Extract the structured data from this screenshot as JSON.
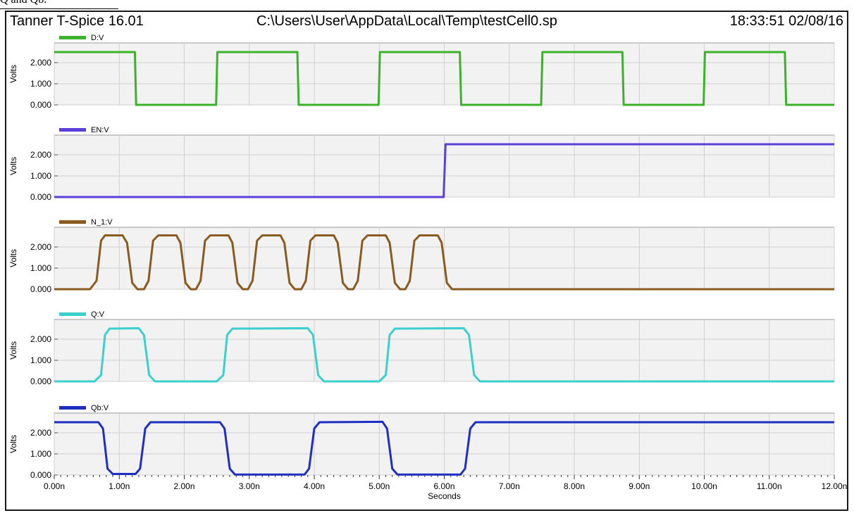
{
  "caption_fragment": "Q and Qb.",
  "header": {
    "app_title": "Tanner T-Spice 16.01",
    "file_path": "C:\\Users\\User\\AppData\\Local\\Temp\\testCell0.sp",
    "timestamp": "18:33:51 02/08/16"
  },
  "colors": {
    "plot_background": "#f2f2f2",
    "grid": "#d0d0d0",
    "D": "#3cb22c",
    "EN": "#5b3fd8",
    "N_1": "#8b5a1e",
    "Q": "#3ccfcf",
    "Qb": "#1f2fc2"
  },
  "chart_data": {
    "type": "line",
    "x_unit": "Seconds",
    "xlabel": "Seconds",
    "ylabel": "Volts",
    "xlim": [
      0,
      1.2e-08
    ],
    "ylim": [
      0,
      2.6
    ],
    "grid": true,
    "x_ticks": [
      "0.00n",
      "1.00n",
      "2.00n",
      "3.00n",
      "4.00n",
      "5.00n",
      "6.00n",
      "7.00n",
      "8.00n",
      "9.00n",
      "10.00n",
      "11.00n",
      "12.00n"
    ],
    "y_ticks": [
      "0.000",
      "1.000",
      "2.000"
    ],
    "panels": [
      {
        "name": "D:V",
        "color_key": "D",
        "points": [
          [
            0,
            2.5
          ],
          [
            1.24e-09,
            2.5
          ],
          [
            1.26e-09,
            0
          ],
          [
            2.49e-09,
            0
          ],
          [
            2.51e-09,
            2.5
          ],
          [
            3.74e-09,
            2.5
          ],
          [
            3.76e-09,
            0
          ],
          [
            4.99e-09,
            0
          ],
          [
            5.01e-09,
            2.5
          ],
          [
            6.24e-09,
            2.5
          ],
          [
            6.26e-09,
            0
          ],
          [
            7.49e-09,
            0
          ],
          [
            7.51e-09,
            2.5
          ],
          [
            8.74e-09,
            2.5
          ],
          [
            8.76e-09,
            0
          ],
          [
            9.99e-09,
            0
          ],
          [
            1.001e-08,
            2.5
          ],
          [
            1.124e-08,
            2.5
          ],
          [
            1.126e-08,
            0
          ],
          [
            1.2e-08,
            0
          ]
        ]
      },
      {
        "name": "EN:V",
        "color_key": "EN",
        "points": [
          [
            0,
            0
          ],
          [
            5.99e-09,
            0
          ],
          [
            6.02e-09,
            2.5
          ],
          [
            1.2e-08,
            2.5
          ]
        ]
      },
      {
        "name": "N_1:V",
        "color_key": "N_1",
        "points": [
          [
            0,
            0
          ],
          [
            5.5e-10,
            0
          ],
          [
            6.5e-10,
            0.4
          ],
          [
            7.2e-10,
            2.3
          ],
          [
            7.8e-10,
            2.55
          ],
          [
            1.05e-09,
            2.55
          ],
          [
            1.12e-09,
            2.2
          ],
          [
            1.2e-09,
            0.3
          ],
          [
            1.28e-09,
            0
          ],
          [
            1.38e-09,
            0
          ],
          [
            1.45e-09,
            0.4
          ],
          [
            1.52e-09,
            2.3
          ],
          [
            1.6e-09,
            2.55
          ],
          [
            1.88e-09,
            2.55
          ],
          [
            1.94e-09,
            2.2
          ],
          [
            2.02e-09,
            0.3
          ],
          [
            2.1e-09,
            0
          ],
          [
            2.18e-09,
            0
          ],
          [
            2.25e-09,
            0.4
          ],
          [
            2.32e-09,
            2.3
          ],
          [
            2.4e-09,
            2.55
          ],
          [
            2.68e-09,
            2.55
          ],
          [
            2.74e-09,
            2.2
          ],
          [
            2.82e-09,
            0.3
          ],
          [
            2.9e-09,
            0
          ],
          [
            2.98e-09,
            0
          ],
          [
            3.05e-09,
            0.4
          ],
          [
            3.12e-09,
            2.3
          ],
          [
            3.2e-09,
            2.55
          ],
          [
            3.48e-09,
            2.55
          ],
          [
            3.54e-09,
            2.2
          ],
          [
            3.62e-09,
            0.3
          ],
          [
            3.7e-09,
            0
          ],
          [
            3.8e-09,
            0
          ],
          [
            3.87e-09,
            0.4
          ],
          [
            3.94e-09,
            2.3
          ],
          [
            4.02e-09,
            2.55
          ],
          [
            4.3e-09,
            2.55
          ],
          [
            4.36e-09,
            2.2
          ],
          [
            4.44e-09,
            0.3
          ],
          [
            4.52e-09,
            0
          ],
          [
            4.6e-09,
            0
          ],
          [
            4.67e-09,
            0.4
          ],
          [
            4.74e-09,
            2.3
          ],
          [
            4.82e-09,
            2.55
          ],
          [
            5.1e-09,
            2.55
          ],
          [
            5.16e-09,
            2.2
          ],
          [
            5.24e-09,
            0.3
          ],
          [
            5.32e-09,
            0
          ],
          [
            5.4e-09,
            0
          ],
          [
            5.47e-09,
            0.4
          ],
          [
            5.54e-09,
            2.3
          ],
          [
            5.62e-09,
            2.55
          ],
          [
            5.9e-09,
            2.55
          ],
          [
            5.96e-09,
            2.2
          ],
          [
            6.04e-09,
            0.3
          ],
          [
            6.12e-09,
            0
          ],
          [
            1.2e-08,
            0
          ]
        ]
      },
      {
        "name": "Q:V",
        "color_key": "Q",
        "points": [
          [
            0,
            0
          ],
          [
            6.2e-10,
            0
          ],
          [
            7.2e-10,
            0.3
          ],
          [
            7.8e-10,
            2.2
          ],
          [
            8.5e-10,
            2.5
          ],
          [
            1.3e-09,
            2.52
          ],
          [
            1.38e-09,
            2.2
          ],
          [
            1.46e-09,
            0.3
          ],
          [
            1.55e-09,
            0
          ],
          [
            2.5e-09,
            0
          ],
          [
            2.6e-09,
            0.3
          ],
          [
            2.66e-09,
            2.2
          ],
          [
            2.74e-09,
            2.5
          ],
          [
            3.9e-09,
            2.52
          ],
          [
            3.98e-09,
            2.2
          ],
          [
            4.06e-09,
            0.3
          ],
          [
            4.15e-09,
            0
          ],
          [
            5e-09,
            0
          ],
          [
            5.1e-09,
            0.3
          ],
          [
            5.16e-09,
            2.2
          ],
          [
            5.24e-09,
            2.5
          ],
          [
            6.3e-09,
            2.52
          ],
          [
            6.38e-09,
            2.2
          ],
          [
            6.46e-09,
            0.3
          ],
          [
            6.55e-09,
            0
          ],
          [
            1.2e-08,
            0
          ]
        ]
      },
      {
        "name": "Qb:V",
        "color_key": "Qb",
        "points": [
          [
            0,
            2.5
          ],
          [
            6.8e-10,
            2.5
          ],
          [
            7.5e-10,
            2.2
          ],
          [
            8.2e-10,
            0.3
          ],
          [
            9e-10,
            0.05
          ],
          [
            1.25e-09,
            0.05
          ],
          [
            1.32e-09,
            0.3
          ],
          [
            1.4e-09,
            2.2
          ],
          [
            1.48e-09,
            2.5
          ],
          [
            2.55e-09,
            2.5
          ],
          [
            2.62e-09,
            2.2
          ],
          [
            2.7e-09,
            0.3
          ],
          [
            2.78e-09,
            0.02
          ],
          [
            3.85e-09,
            0.02
          ],
          [
            3.92e-09,
            0.3
          ],
          [
            4e-09,
            2.2
          ],
          [
            4.08e-09,
            2.5
          ],
          [
            5.05e-09,
            2.52
          ],
          [
            5.12e-09,
            2.2
          ],
          [
            5.2e-09,
            0.3
          ],
          [
            5.28e-09,
            0.02
          ],
          [
            6.25e-09,
            0.02
          ],
          [
            6.32e-09,
            0.3
          ],
          [
            6.4e-09,
            2.2
          ],
          [
            6.48e-09,
            2.5
          ],
          [
            1.2e-08,
            2.5
          ]
        ]
      }
    ]
  }
}
